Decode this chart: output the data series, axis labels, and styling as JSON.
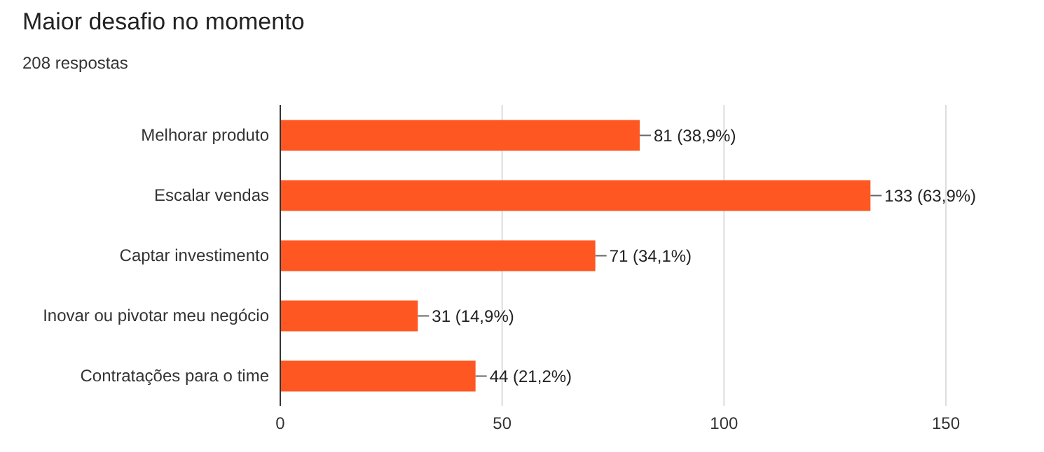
{
  "chart_data": {
    "type": "bar",
    "orientation": "horizontal",
    "title": "Maior desafio no momento",
    "subtitle": "208 respostas",
    "categories": [
      "Melhorar produto",
      "Escalar vendas",
      "Captar investimento",
      "Inovar ou pivotar meu negócio",
      "Contratações para o time"
    ],
    "values": [
      81,
      133,
      71,
      31,
      44
    ],
    "value_labels": [
      "81 (38,9%)",
      "133 (63,9%)",
      "71 (34,1%)",
      "31 (14,9%)",
      "44 (21,2%)"
    ],
    "color": "#ff5722",
    "xlim": [
      0,
      150
    ],
    "xticks": [
      0,
      50,
      100,
      150
    ],
    "grid": "x"
  }
}
